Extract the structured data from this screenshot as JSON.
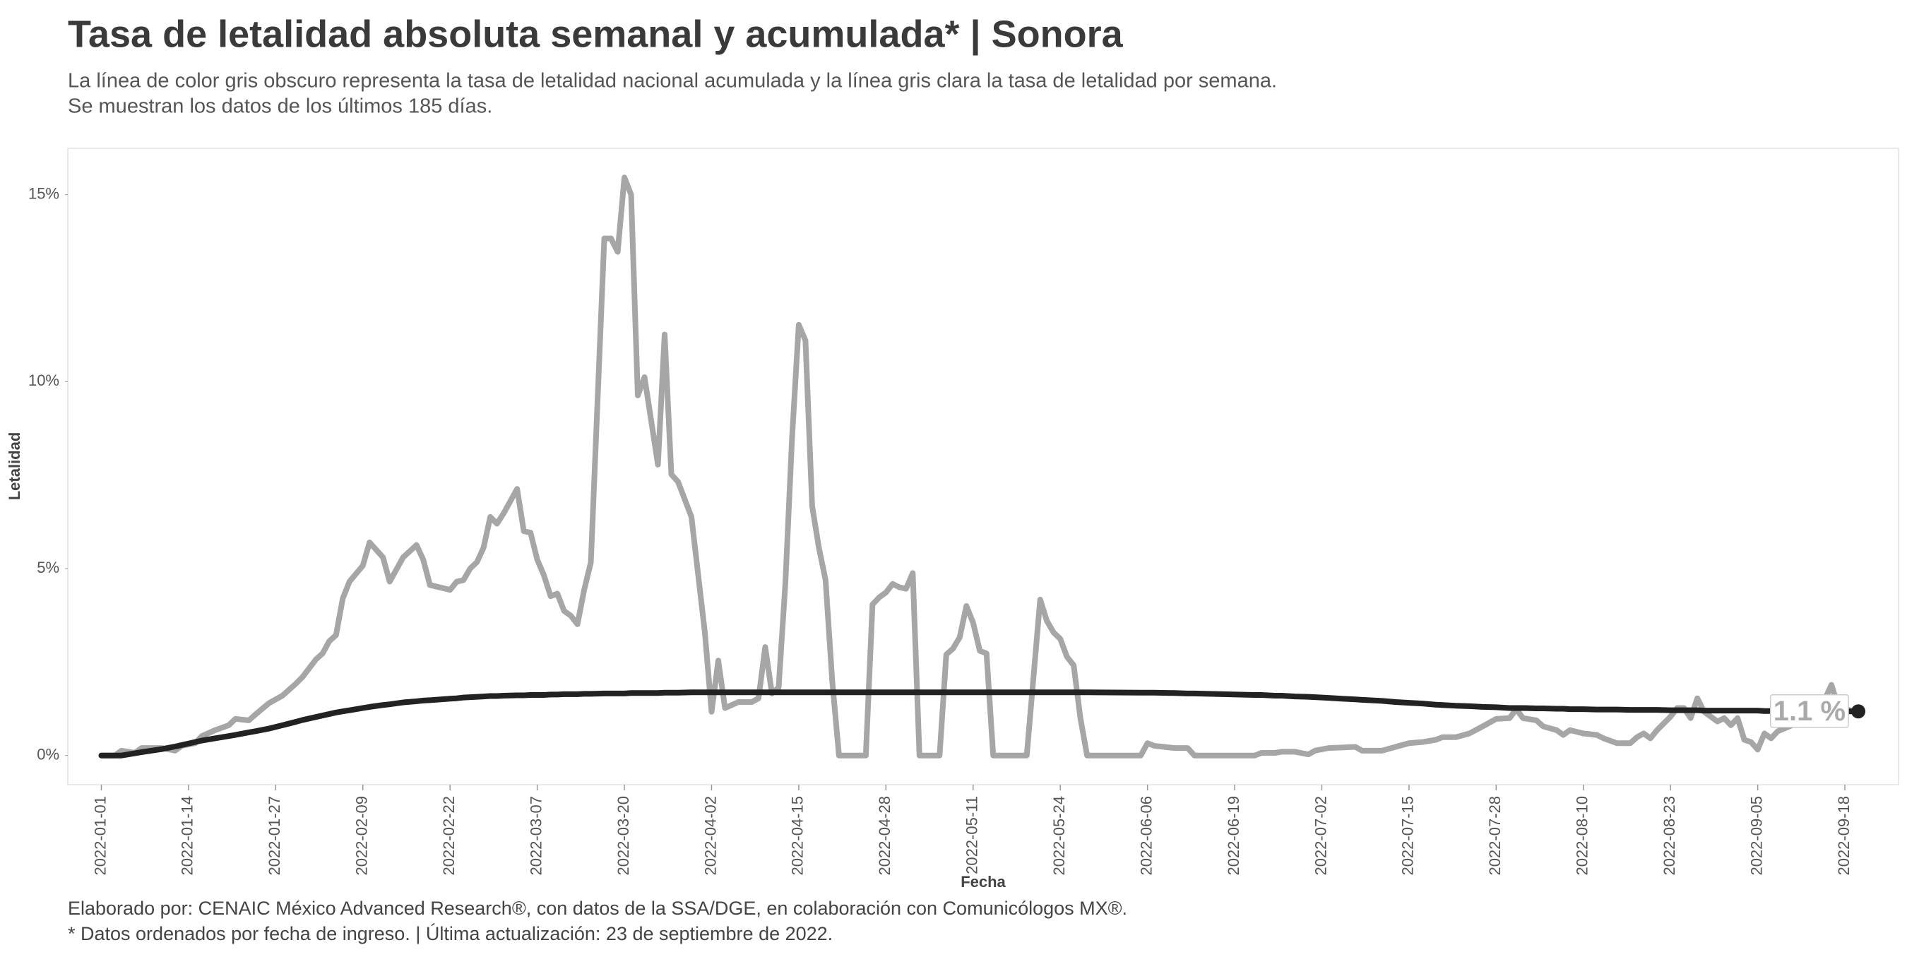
{
  "chart_data": {
    "type": "line",
    "title": "Tasa de letalidad absoluta semanal y acumulada* | Sonora",
    "subtitle": [
      "La línea de color gris obscuro representa la tasa de letalidad nacional acumulada y la línea gris clara la tasa de letalidad por semana.",
      "Se muestran los datos de los últimos 185 días."
    ],
    "x_label": "Fecha",
    "y_label": "Letalidad",
    "caption": [
      "Elaborado por: CENAIC México Advanced Research®, con datos de la SSA/DGE, en colaboración con Comunicólogos MX®.",
      "* Datos ordenados por fecha de ingreso. | Última actualización: 23 de septiembre de 2022."
    ],
    "end_label": "1.1 %",
    "x": [
      "2022-01-01",
      "2022-01-03",
      "2022-01-04",
      "2022-01-06",
      "2022-01-07",
      "2022-01-10",
      "2022-01-12",
      "2022-01-13",
      "2022-01-15",
      "2022-01-16",
      "2022-01-18",
      "2022-01-20",
      "2022-01-21",
      "2022-01-23",
      "2022-01-24",
      "2022-01-26",
      "2022-01-28",
      "2022-01-30",
      "2022-01-31",
      "2022-02-02",
      "2022-02-03",
      "2022-02-04",
      "2022-02-05",
      "2022-02-06",
      "2022-02-07",
      "2022-02-09",
      "2022-02-10",
      "2022-02-12",
      "2022-02-13",
      "2022-02-15",
      "2022-02-17",
      "2022-02-18",
      "2022-02-19",
      "2022-02-22",
      "2022-02-23",
      "2022-02-24",
      "2022-02-25",
      "2022-02-26",
      "2022-02-27",
      "2022-02-28",
      "2022-03-01",
      "2022-03-02",
      "2022-03-04",
      "2022-03-05",
      "2022-03-06",
      "2022-03-07",
      "2022-03-08",
      "2022-03-09",
      "2022-03-10",
      "2022-03-11",
      "2022-03-12",
      "2022-03-13",
      "2022-03-14",
      "2022-03-15",
      "2022-03-17",
      "2022-03-18",
      "2022-03-19",
      "2022-03-20",
      "2022-03-21",
      "2022-03-22",
      "2022-03-23",
      "2022-03-25",
      "2022-03-26",
      "2022-03-27",
      "2022-03-28",
      "2022-03-30",
      "2022-04-01",
      "2022-04-02",
      "2022-04-03",
      "2022-04-04",
      "2022-04-06",
      "2022-04-08",
      "2022-04-09",
      "2022-04-10",
      "2022-04-11",
      "2022-04-12",
      "2022-04-13",
      "2022-04-14",
      "2022-04-15",
      "2022-04-16",
      "2022-04-17",
      "2022-04-18",
      "2022-04-19",
      "2022-04-20",
      "2022-04-21",
      "2022-04-25",
      "2022-04-26",
      "2022-04-27",
      "2022-04-28",
      "2022-04-29",
      "2022-04-30",
      "2022-05-01",
      "2022-05-02",
      "2022-05-03",
      "2022-05-06",
      "2022-05-07",
      "2022-05-08",
      "2022-05-09",
      "2022-05-10",
      "2022-05-11",
      "2022-05-12",
      "2022-05-13",
      "2022-05-14",
      "2022-05-19",
      "2022-05-21",
      "2022-05-22",
      "2022-05-23",
      "2022-05-24",
      "2022-05-25",
      "2022-05-26",
      "2022-05-27",
      "2022-05-28",
      "2022-06-05",
      "2022-06-06",
      "2022-06-07",
      "2022-06-10",
      "2022-06-12",
      "2022-06-13",
      "2022-06-22",
      "2022-06-23",
      "2022-06-25",
      "2022-06-26",
      "2022-06-28",
      "2022-06-30",
      "2022-07-01",
      "2022-07-03",
      "2022-07-07",
      "2022-07-08",
      "2022-07-11",
      "2022-07-13",
      "2022-07-15",
      "2022-07-17",
      "2022-07-19",
      "2022-07-20",
      "2022-07-22",
      "2022-07-24",
      "2022-07-26",
      "2022-07-28",
      "2022-07-30",
      "2022-07-31",
      "2022-08-01",
      "2022-08-03",
      "2022-08-04",
      "2022-08-06",
      "2022-08-07",
      "2022-08-08",
      "2022-08-10",
      "2022-08-12",
      "2022-08-13",
      "2022-08-15",
      "2022-08-17",
      "2022-08-18",
      "2022-08-19",
      "2022-08-20",
      "2022-08-21",
      "2022-08-23",
      "2022-08-24",
      "2022-08-25",
      "2022-08-26",
      "2022-08-27",
      "2022-08-28",
      "2022-08-30",
      "2022-08-31",
      "2022-09-01",
      "2022-09-02",
      "2022-09-03",
      "2022-09-04",
      "2022-09-05",
      "2022-09-06",
      "2022-09-07",
      "2022-09-08",
      "2022-09-10",
      "2022-09-12",
      "2022-09-14",
      "2022-09-15",
      "2022-09-16",
      "2022-09-17",
      "2022-09-19",
      "2022-09-20"
    ],
    "series": [
      {
        "color": "#a6a6a6",
        "width": 8,
        "values": [
          0,
          0,
          0.13,
          0.07,
          0.2,
          0.2,
          0.13,
          0.26,
          0.33,
          0.52,
          0.68,
          0.81,
          0.98,
          0.94,
          1.1,
          1.4,
          1.6,
          1.92,
          2.1,
          2.57,
          2.73,
          3.06,
          3.22,
          4.2,
          4.65,
          5.08,
          5.7,
          5.3,
          4.65,
          5.3,
          5.63,
          5.24,
          4.56,
          4.43,
          4.65,
          4.69,
          5.0,
          5.17,
          5.56,
          6.38,
          6.2,
          6.48,
          7.13,
          6.0,
          5.96,
          5.24,
          4.82,
          4.26,
          4.33,
          3.87,
          3.74,
          3.51,
          4.43,
          5.17,
          13.83,
          13.83,
          13.47,
          15.46,
          15.0,
          9.63,
          10.12,
          7.78,
          11.26,
          7.52,
          7.32,
          6.38,
          3.29,
          1.17,
          2.54,
          1.27,
          1.43,
          1.43,
          1.53,
          2.9,
          1.66,
          1.82,
          4.59,
          8.49,
          11.52,
          11.1,
          6.67,
          5.56,
          4.69,
          1.98,
          0,
          0,
          4.04,
          4.23,
          4.36,
          4.59,
          4.5,
          4.46,
          4.88,
          0,
          0,
          2.7,
          2.86,
          3.16,
          4.0,
          3.55,
          2.8,
          2.73,
          0,
          0,
          4.17,
          3.6,
          3.29,
          3.12,
          2.64,
          2.41,
          1.0,
          0,
          0,
          0.33,
          0.26,
          0.2,
          0.2,
          0,
          0,
          0.07,
          0.07,
          0.1,
          0.1,
          0.03,
          0.13,
          0.2,
          0.23,
          0.13,
          0.13,
          0.23,
          0.33,
          0.36,
          0.42,
          0.49,
          0.49,
          0.59,
          0.78,
          0.98,
          1.0,
          1.24,
          1.0,
          0.94,
          0.78,
          0.68,
          0.55,
          0.68,
          0.59,
          0.55,
          0.46,
          0.33,
          0.33,
          0.49,
          0.59,
          0.46,
          0.68,
          1.04,
          1.27,
          1.27,
          1.0,
          1.53,
          1.17,
          0.91,
          1.0,
          0.81,
          1.0,
          0.42,
          0.36,
          0.16,
          0.59,
          0.46,
          0.65,
          0.8,
          1.0,
          1.3,
          1.5,
          1.89,
          1.3,
          1.2,
          1.15
        ]
      },
      {
        "color": "#222222",
        "width": 8,
        "values": [
          0,
          0,
          0,
          0.06,
          0.09,
          0.17,
          0.24,
          0.28,
          0.36,
          0.4,
          0.46,
          0.52,
          0.55,
          0.62,
          0.65,
          0.72,
          0.81,
          0.9,
          0.95,
          1.03,
          1.07,
          1.11,
          1.15,
          1.18,
          1.21,
          1.27,
          1.3,
          1.35,
          1.37,
          1.42,
          1.45,
          1.47,
          1.48,
          1.52,
          1.53,
          1.55,
          1.56,
          1.57,
          1.58,
          1.59,
          1.59,
          1.6,
          1.61,
          1.61,
          1.62,
          1.62,
          1.62,
          1.63,
          1.63,
          1.64,
          1.64,
          1.64,
          1.65,
          1.65,
          1.66,
          1.66,
          1.66,
          1.66,
          1.67,
          1.67,
          1.67,
          1.67,
          1.68,
          1.68,
          1.68,
          1.69,
          1.69,
          1.69,
          1.69,
          1.69,
          1.69,
          1.69,
          1.69,
          1.69,
          1.69,
          1.69,
          1.69,
          1.69,
          1.69,
          1.69,
          1.69,
          1.69,
          1.69,
          1.69,
          1.69,
          1.69,
          1.69,
          1.69,
          1.69,
          1.69,
          1.69,
          1.69,
          1.69,
          1.69,
          1.69,
          1.69,
          1.69,
          1.69,
          1.69,
          1.69,
          1.69,
          1.69,
          1.69,
          1.69,
          1.69,
          1.69,
          1.69,
          1.69,
          1.69,
          1.69,
          1.69,
          1.69,
          1.68,
          1.68,
          1.68,
          1.67,
          1.66,
          1.66,
          1.62,
          1.62,
          1.6,
          1.6,
          1.58,
          1.57,
          1.56,
          1.54,
          1.5,
          1.49,
          1.46,
          1.43,
          1.41,
          1.39,
          1.36,
          1.35,
          1.33,
          1.32,
          1.3,
          1.29,
          1.27,
          1.27,
          1.27,
          1.26,
          1.26,
          1.25,
          1.25,
          1.24,
          1.24,
          1.23,
          1.23,
          1.23,
          1.22,
          1.22,
          1.22,
          1.22,
          1.22,
          1.21,
          1.21,
          1.21,
          1.21,
          1.21,
          1.2,
          1.2,
          1.2,
          1.2,
          1.2,
          1.2,
          1.2,
          1.2,
          1.19,
          1.19,
          1.19,
          1.19,
          1.19,
          1.19,
          1.19,
          1.18,
          1.18,
          1.18,
          1.18
        ]
      }
    ],
    "xlim": [
      "2021-12-27",
      "2022-09-26"
    ],
    "xticks": [
      "2022-01-01",
      "2022-01-14",
      "2022-01-27",
      "2022-02-09",
      "2022-02-22",
      "2022-03-07",
      "2022-03-20",
      "2022-04-02",
      "2022-04-15",
      "2022-04-28",
      "2022-05-11",
      "2022-05-24",
      "2022-06-06",
      "2022-06-19",
      "2022-07-02",
      "2022-07-15",
      "2022-07-28",
      "2022-08-10",
      "2022-08-23",
      "2022-09-05",
      "2022-09-18"
    ],
    "ylim": [
      -0.78,
      16.24
    ],
    "yticks": [
      {
        "value": 0,
        "label": "0%"
      },
      {
        "value": 5,
        "label": "5%"
      },
      {
        "value": 10,
        "label": "10%"
      },
      {
        "value": 15,
        "label": "15%"
      }
    ]
  }
}
